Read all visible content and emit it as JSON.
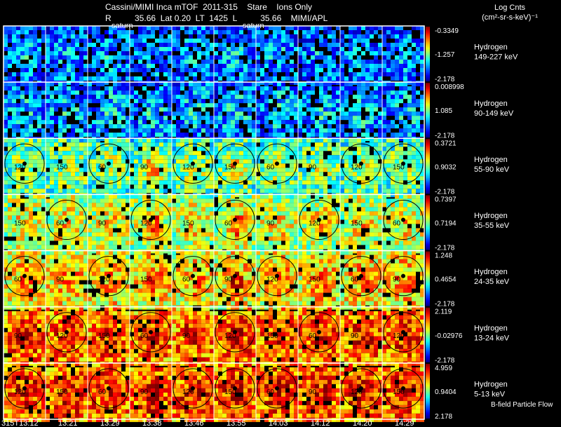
{
  "header": {
    "title": "Cassini/MIMI Inca mTOF  2011-315    Stare    Ions Only",
    "subtitle": "R          35.66  Lat 0.20  LT  1425  L          35.66    MIMI/APL"
  },
  "legend": {
    "title": "Log Cnts",
    "units": "(cm²-sr-s-keV)⁻¹"
  },
  "footer_label": "B-field Particle Flow",
  "frame_labels": {
    "saturn_1": "saturn",
    "saturn_2": "saturn"
  },
  "colors": {
    "background": "#000000",
    "grid": "#ffffff",
    "contour": "#000000"
  },
  "chart_data": {
    "type": "heatmap",
    "title": "Cassini/MIMI Inca mTOF  2011-315    Stare    Ions Only",
    "x": [
      "315T13:12",
      "13:21",
      "13:29",
      "13:38",
      "13:46",
      "13:55",
      "14:03",
      "14:12",
      "14:20",
      "14:29"
    ],
    "panels": [
      {
        "species": "Hydrogen",
        "energy": "149-227 keV",
        "cmax": "-0.3349",
        "cmid": "-1.257",
        "cmin": "-2.178",
        "level": 0.18
      },
      {
        "species": "Hydrogen",
        "energy": "90-149 keV",
        "cmax": "0.008998",
        "cmid": "1.085",
        "cmin": "-2.178",
        "level": 0.22
      },
      {
        "species": "Hydrogen",
        "energy": "55-90 keV",
        "cmax": "0.3721",
        "cmid": "0.9032",
        "cmin": "-2.178",
        "level": 0.42
      },
      {
        "species": "Hydrogen",
        "energy": "35-55 keV",
        "cmax": "0.7397",
        "cmid": "0.7194",
        "cmin": "-2.178",
        "level": 0.52
      },
      {
        "species": "Hydrogen",
        "energy": "24-35 keV",
        "cmax": "1.248",
        "cmid": "0.4654",
        "cmin": "-2.178",
        "level": 0.6
      },
      {
        "species": "Hydrogen",
        "energy": "13-24 keV",
        "cmax": "2.119",
        "cmid": "-0.02976",
        "cmin": "-2.178",
        "level": 0.72
      },
      {
        "species": "Hydrogen",
        "energy": "5-13 keV",
        "cmax": "4.959",
        "cmid": "0.9404",
        "cmin": "2.178",
        "level": 0.74
      }
    ],
    "contour_labels": [
      "60",
      "90",
      "120",
      "150"
    ]
  }
}
